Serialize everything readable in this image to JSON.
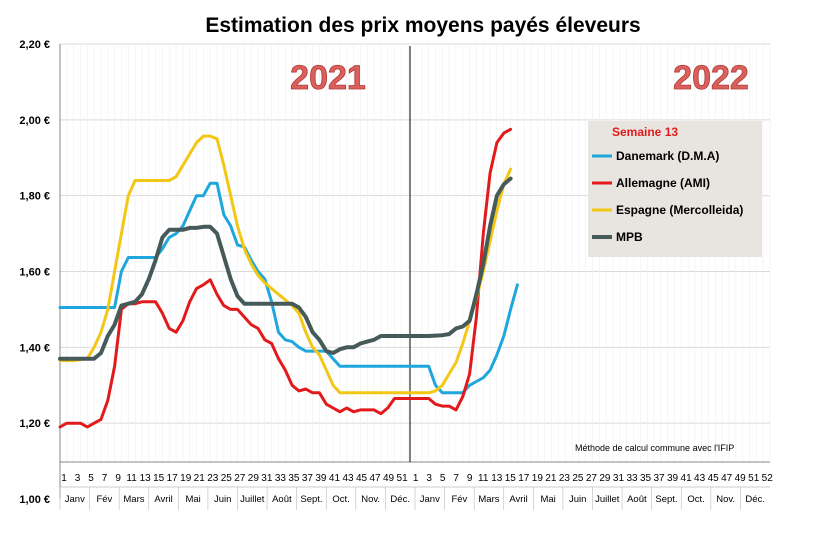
{
  "chart_data": {
    "type": "line",
    "title": "Estimation des prix moyens payés éleveurs",
    "ylim": [
      1.0,
      2.2
    ],
    "yticks": [
      "1,00 €",
      "1,20 €",
      "1,40 €",
      "1,60 €",
      "1,80 €",
      "2,00 €",
      "2,20 €"
    ],
    "ytick_values": [
      1.0,
      1.2,
      1.4,
      1.6,
      1.8,
      2.0,
      2.2
    ],
    "grid": true,
    "x_unit": "week",
    "x_range": [
      1,
      105
    ],
    "year_labels": [
      {
        "text": "2021",
        "at_week": 1
      },
      {
        "text": "2022",
        "at_week": 53
      }
    ],
    "week_tick_labels": [
      "1",
      "3",
      "5",
      "7",
      "9",
      "11",
      "13",
      "15",
      "17",
      "19",
      "21",
      "23",
      "25",
      "27",
      "29",
      "31",
      "33",
      "35",
      "37",
      "39",
      "41",
      "43",
      "45",
      "47",
      "49",
      "51",
      "1",
      "3",
      "5",
      "7",
      "9",
      "11",
      "13",
      "15",
      "17",
      "19",
      "21",
      "23",
      "25",
      "27",
      "29",
      "31",
      "33",
      "35",
      "37",
      "39",
      "41",
      "43",
      "45",
      "47",
      "49",
      "51",
      "52"
    ],
    "months": [
      "Janv",
      "Fév",
      "Mars",
      "Avril",
      "Mai",
      "Juin",
      "Juillet",
      "Août",
      "Sept.",
      "Oct.",
      "Nov.",
      "Déc.",
      "Janv",
      "Fév",
      "Mars",
      "Avril",
      "Mai",
      "Juin",
      "Juillet",
      "Août",
      "Sept.",
      "Oct.",
      "Nov.",
      "Déc."
    ],
    "legend": {
      "heading": "Semaine 13",
      "placement": "top-right"
    },
    "note": "Méthode de calcul commune avec l'IFIP",
    "series": [
      {
        "name": "Danemark (D.M.A)",
        "color": "#1ea6dd",
        "points": [
          [
            1,
            1.505
          ],
          [
            3,
            1.505
          ],
          [
            5,
            1.505
          ],
          [
            7,
            1.505
          ],
          [
            8,
            1.505
          ],
          [
            9,
            1.505
          ],
          [
            10,
            1.6
          ],
          [
            11,
            1.637
          ],
          [
            13,
            1.637
          ],
          [
            15,
            1.637
          ],
          [
            16,
            1.66
          ],
          [
            17,
            1.69
          ],
          [
            18,
            1.7
          ],
          [
            19,
            1.72
          ],
          [
            20,
            1.76
          ],
          [
            21,
            1.8
          ],
          [
            22,
            1.8
          ],
          [
            23,
            1.833
          ],
          [
            24,
            1.833
          ],
          [
            25,
            1.75
          ],
          [
            26,
            1.72
          ],
          [
            27,
            1.67
          ],
          [
            28,
            1.665
          ],
          [
            29,
            1.63
          ],
          [
            30,
            1.6
          ],
          [
            31,
            1.58
          ],
          [
            32,
            1.52
          ],
          [
            33,
            1.44
          ],
          [
            34,
            1.42
          ],
          [
            35,
            1.415
          ],
          [
            36,
            1.4
          ],
          [
            37,
            1.39
          ],
          [
            38,
            1.39
          ],
          [
            39,
            1.39
          ],
          [
            40,
            1.39
          ],
          [
            41,
            1.37
          ],
          [
            42,
            1.35
          ],
          [
            43,
            1.35
          ],
          [
            45,
            1.35
          ],
          [
            47,
            1.35
          ],
          [
            49,
            1.35
          ],
          [
            51,
            1.35
          ],
          [
            53,
            1.35
          ],
          [
            55,
            1.35
          ],
          [
            56,
            1.3
          ],
          [
            57,
            1.28
          ],
          [
            58,
            1.28
          ],
          [
            59,
            1.28
          ],
          [
            60,
            1.28
          ],
          [
            61,
            1.3
          ],
          [
            62,
            1.31
          ],
          [
            63,
            1.32
          ],
          [
            64,
            1.34
          ],
          [
            65,
            1.38
          ],
          [
            66,
            1.43
          ],
          [
            67,
            1.5
          ],
          [
            68,
            1.565
          ]
        ]
      },
      {
        "name": "Allemagne (AMI)",
        "color": "#e31a1c",
        "points": [
          [
            1,
            1.19
          ],
          [
            2,
            1.2
          ],
          [
            3,
            1.2
          ],
          [
            4,
            1.2
          ],
          [
            5,
            1.19
          ],
          [
            6,
            1.2
          ],
          [
            7,
            1.21
          ],
          [
            8,
            1.26
          ],
          [
            9,
            1.35
          ],
          [
            10,
            1.5
          ],
          [
            11,
            1.515
          ],
          [
            12,
            1.515
          ],
          [
            13,
            1.52
          ],
          [
            14,
            1.52
          ],
          [
            15,
            1.52
          ],
          [
            16,
            1.49
          ],
          [
            17,
            1.45
          ],
          [
            18,
            1.44
          ],
          [
            19,
            1.47
          ],
          [
            20,
            1.52
          ],
          [
            21,
            1.555
          ],
          [
            22,
            1.565
          ],
          [
            23,
            1.578
          ],
          [
            24,
            1.54
          ],
          [
            25,
            1.51
          ],
          [
            26,
            1.5
          ],
          [
            27,
            1.5
          ],
          [
            28,
            1.48
          ],
          [
            29,
            1.46
          ],
          [
            30,
            1.45
          ],
          [
            31,
            1.42
          ],
          [
            32,
            1.41
          ],
          [
            33,
            1.37
          ],
          [
            34,
            1.34
          ],
          [
            35,
            1.3
          ],
          [
            36,
            1.285
          ],
          [
            37,
            1.29
          ],
          [
            38,
            1.28
          ],
          [
            39,
            1.28
          ],
          [
            40,
            1.25
          ],
          [
            41,
            1.24
          ],
          [
            42,
            1.23
          ],
          [
            43,
            1.24
          ],
          [
            44,
            1.23
          ],
          [
            45,
            1.235
          ],
          [
            47,
            1.235
          ],
          [
            48,
            1.225
          ],
          [
            49,
            1.24
          ],
          [
            50,
            1.265
          ],
          [
            51,
            1.265
          ],
          [
            53,
            1.265
          ],
          [
            55,
            1.265
          ],
          [
            56,
            1.25
          ],
          [
            57,
            1.245
          ],
          [
            58,
            1.245
          ],
          [
            59,
            1.235
          ],
          [
            60,
            1.27
          ],
          [
            61,
            1.33
          ],
          [
            62,
            1.48
          ],
          [
            63,
            1.7
          ],
          [
            64,
            1.86
          ],
          [
            65,
            1.94
          ],
          [
            66,
            1.965
          ],
          [
            67,
            1.975
          ]
        ]
      },
      {
        "name": "Espagne (Mercolleida)",
        "color": "#f2c716",
        "points": [
          [
            1,
            1.365
          ],
          [
            3,
            1.365
          ],
          [
            5,
            1.37
          ],
          [
            6,
            1.4
          ],
          [
            7,
            1.44
          ],
          [
            8,
            1.5
          ],
          [
            9,
            1.6
          ],
          [
            10,
            1.7
          ],
          [
            11,
            1.8
          ],
          [
            12,
            1.84
          ],
          [
            13,
            1.84
          ],
          [
            15,
            1.84
          ],
          [
            17,
            1.84
          ],
          [
            18,
            1.85
          ],
          [
            19,
            1.88
          ],
          [
            20,
            1.91
          ],
          [
            21,
            1.94
          ],
          [
            22,
            1.957
          ],
          [
            23,
            1.957
          ],
          [
            24,
            1.95
          ],
          [
            25,
            1.88
          ],
          [
            26,
            1.8
          ],
          [
            27,
            1.72
          ],
          [
            28,
            1.66
          ],
          [
            29,
            1.62
          ],
          [
            30,
            1.59
          ],
          [
            31,
            1.57
          ],
          [
            32,
            1.555
          ],
          [
            33,
            1.54
          ],
          [
            34,
            1.525
          ],
          [
            35,
            1.51
          ],
          [
            36,
            1.49
          ],
          [
            37,
            1.44
          ],
          [
            38,
            1.4
          ],
          [
            39,
            1.38
          ],
          [
            40,
            1.34
          ],
          [
            41,
            1.3
          ],
          [
            42,
            1.28
          ],
          [
            43,
            1.28
          ],
          [
            45,
            1.28
          ],
          [
            47,
            1.28
          ],
          [
            49,
            1.28
          ],
          [
            51,
            1.28
          ],
          [
            53,
            1.28
          ],
          [
            55,
            1.28
          ],
          [
            56,
            1.285
          ],
          [
            57,
            1.3
          ],
          [
            58,
            1.33
          ],
          [
            59,
            1.36
          ],
          [
            60,
            1.41
          ],
          [
            61,
            1.47
          ],
          [
            62,
            1.53
          ],
          [
            63,
            1.6
          ],
          [
            64,
            1.68
          ],
          [
            65,
            1.76
          ],
          [
            66,
            1.83
          ],
          [
            67,
            1.87
          ]
        ]
      },
      {
        "name": "MPB",
        "color": "#465a5a",
        "points": [
          [
            1,
            1.37
          ],
          [
            3,
            1.37
          ],
          [
            5,
            1.37
          ],
          [
            6,
            1.37
          ],
          [
            7,
            1.385
          ],
          [
            8,
            1.43
          ],
          [
            9,
            1.46
          ],
          [
            10,
            1.51
          ],
          [
            11,
            1.515
          ],
          [
            12,
            1.52
          ],
          [
            13,
            1.54
          ],
          [
            14,
            1.58
          ],
          [
            15,
            1.63
          ],
          [
            16,
            1.69
          ],
          [
            17,
            1.71
          ],
          [
            18,
            1.71
          ],
          [
            19,
            1.71
          ],
          [
            20,
            1.715
          ],
          [
            21,
            1.715
          ],
          [
            22,
            1.718
          ],
          [
            23,
            1.718
          ],
          [
            24,
            1.7
          ],
          [
            25,
            1.64
          ],
          [
            26,
            1.58
          ],
          [
            27,
            1.535
          ],
          [
            28,
            1.515
          ],
          [
            29,
            1.515
          ],
          [
            31,
            1.515
          ],
          [
            33,
            1.515
          ],
          [
            35,
            1.515
          ],
          [
            36,
            1.505
          ],
          [
            37,
            1.48
          ],
          [
            38,
            1.44
          ],
          [
            39,
            1.42
          ],
          [
            40,
            1.39
          ],
          [
            41,
            1.385
          ],
          [
            42,
            1.395
          ],
          [
            43,
            1.4
          ],
          [
            44,
            1.4
          ],
          [
            45,
            1.41
          ],
          [
            46,
            1.415
          ],
          [
            47,
            1.42
          ],
          [
            48,
            1.43
          ],
          [
            49,
            1.43
          ],
          [
            51,
            1.43
          ],
          [
            53,
            1.43
          ],
          [
            55,
            1.43
          ],
          [
            57,
            1.432
          ],
          [
            58,
            1.435
          ],
          [
            59,
            1.45
          ],
          [
            60,
            1.455
          ],
          [
            61,
            1.47
          ],
          [
            62,
            1.54
          ],
          [
            63,
            1.62
          ],
          [
            64,
            1.72
          ],
          [
            65,
            1.8
          ],
          [
            66,
            1.83
          ],
          [
            67,
            1.845
          ]
        ]
      }
    ]
  }
}
